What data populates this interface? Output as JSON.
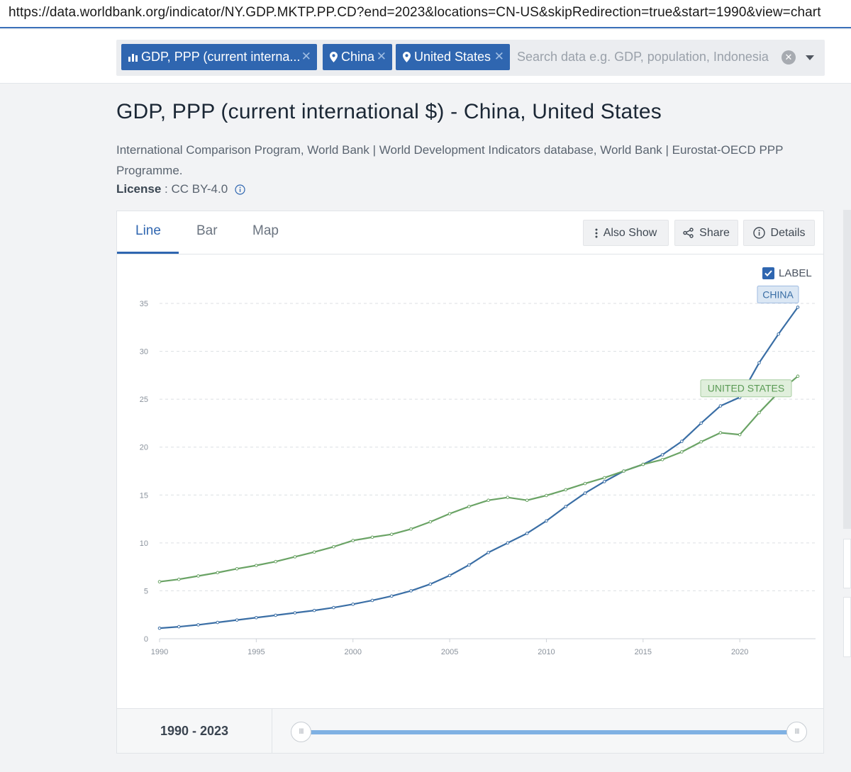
{
  "browser": {
    "url": "https://data.worldbank.org/indicator/NY.GDP.MKTP.PP.CD?end=2023&locations=CN-US&skipRedirection=true&start=1990&view=chart"
  },
  "search": {
    "chips": [
      {
        "label": "GDP, PPP (current interna...",
        "icon": "bar-chart-icon"
      },
      {
        "label": "China",
        "icon": "map-pin-icon"
      },
      {
        "label": "United States",
        "icon": "map-pin-icon"
      }
    ],
    "placeholder": "Search data e.g. GDP, population, Indonesia"
  },
  "header": {
    "title": "GDP, PPP (current international $) - China, United States",
    "source": "International Comparison Program, World Bank | World Development Indicators database, World Bank | Eurostat-OECD PPP Programme.",
    "license_label": "License",
    "license_value": " : CC BY-4.0"
  },
  "tabs": [
    {
      "label": "Line",
      "active": true
    },
    {
      "label": "Bar",
      "active": false
    },
    {
      "label": "Map",
      "active": false
    }
  ],
  "toolbar": {
    "also_show": "Also Show",
    "share": "Share",
    "details": "Details"
  },
  "label_toggle": {
    "label": "LABEL",
    "checked": true
  },
  "colors": {
    "china": "#3a6ea5",
    "united_states": "#6aa365",
    "accent": "#2f66b0"
  },
  "chart_data": {
    "type": "line",
    "title": "",
    "xlabel": "",
    "ylabel": "",
    "xlim": [
      1990,
      2023
    ],
    "ylim": [
      0,
      35
    ],
    "x_ticks": [
      "1990",
      "1995",
      "2000",
      "2005",
      "2010",
      "2015",
      "2020"
    ],
    "y_ticks": [
      "0",
      "5",
      "10",
      "15",
      "20",
      "25",
      "30",
      "35"
    ],
    "grid": true,
    "x": [
      1990,
      1991,
      1992,
      1993,
      1994,
      1995,
      1996,
      1997,
      1998,
      1999,
      2000,
      2001,
      2002,
      2003,
      2004,
      2005,
      2006,
      2007,
      2008,
      2009,
      2010,
      2011,
      2012,
      2013,
      2014,
      2015,
      2016,
      2017,
      2018,
      2019,
      2020,
      2021,
      2022,
      2023
    ],
    "series": [
      {
        "name": "CHINA",
        "values": [
          1.1,
          1.25,
          1.45,
          1.7,
          1.95,
          2.2,
          2.45,
          2.7,
          2.95,
          3.25,
          3.6,
          4.0,
          4.45,
          5.0,
          5.7,
          6.6,
          7.7,
          9.0,
          10.0,
          11.0,
          12.3,
          13.8,
          15.2,
          16.4,
          17.5,
          18.2,
          19.2,
          20.6,
          22.5,
          24.3,
          25.2,
          28.8,
          31.8,
          34.6
        ]
      },
      {
        "name": "UNITED STATES",
        "values": [
          5.95,
          6.2,
          6.55,
          6.9,
          7.3,
          7.65,
          8.05,
          8.55,
          9.05,
          9.6,
          10.25,
          10.6,
          10.9,
          11.45,
          12.2,
          13.05,
          13.8,
          14.45,
          14.75,
          14.45,
          14.95,
          15.55,
          16.2,
          16.8,
          17.5,
          18.2,
          18.7,
          19.5,
          20.55,
          21.5,
          21.3,
          23.6,
          25.7,
          27.4
        ]
      }
    ]
  },
  "range": {
    "label": "1990 - 2023"
  }
}
